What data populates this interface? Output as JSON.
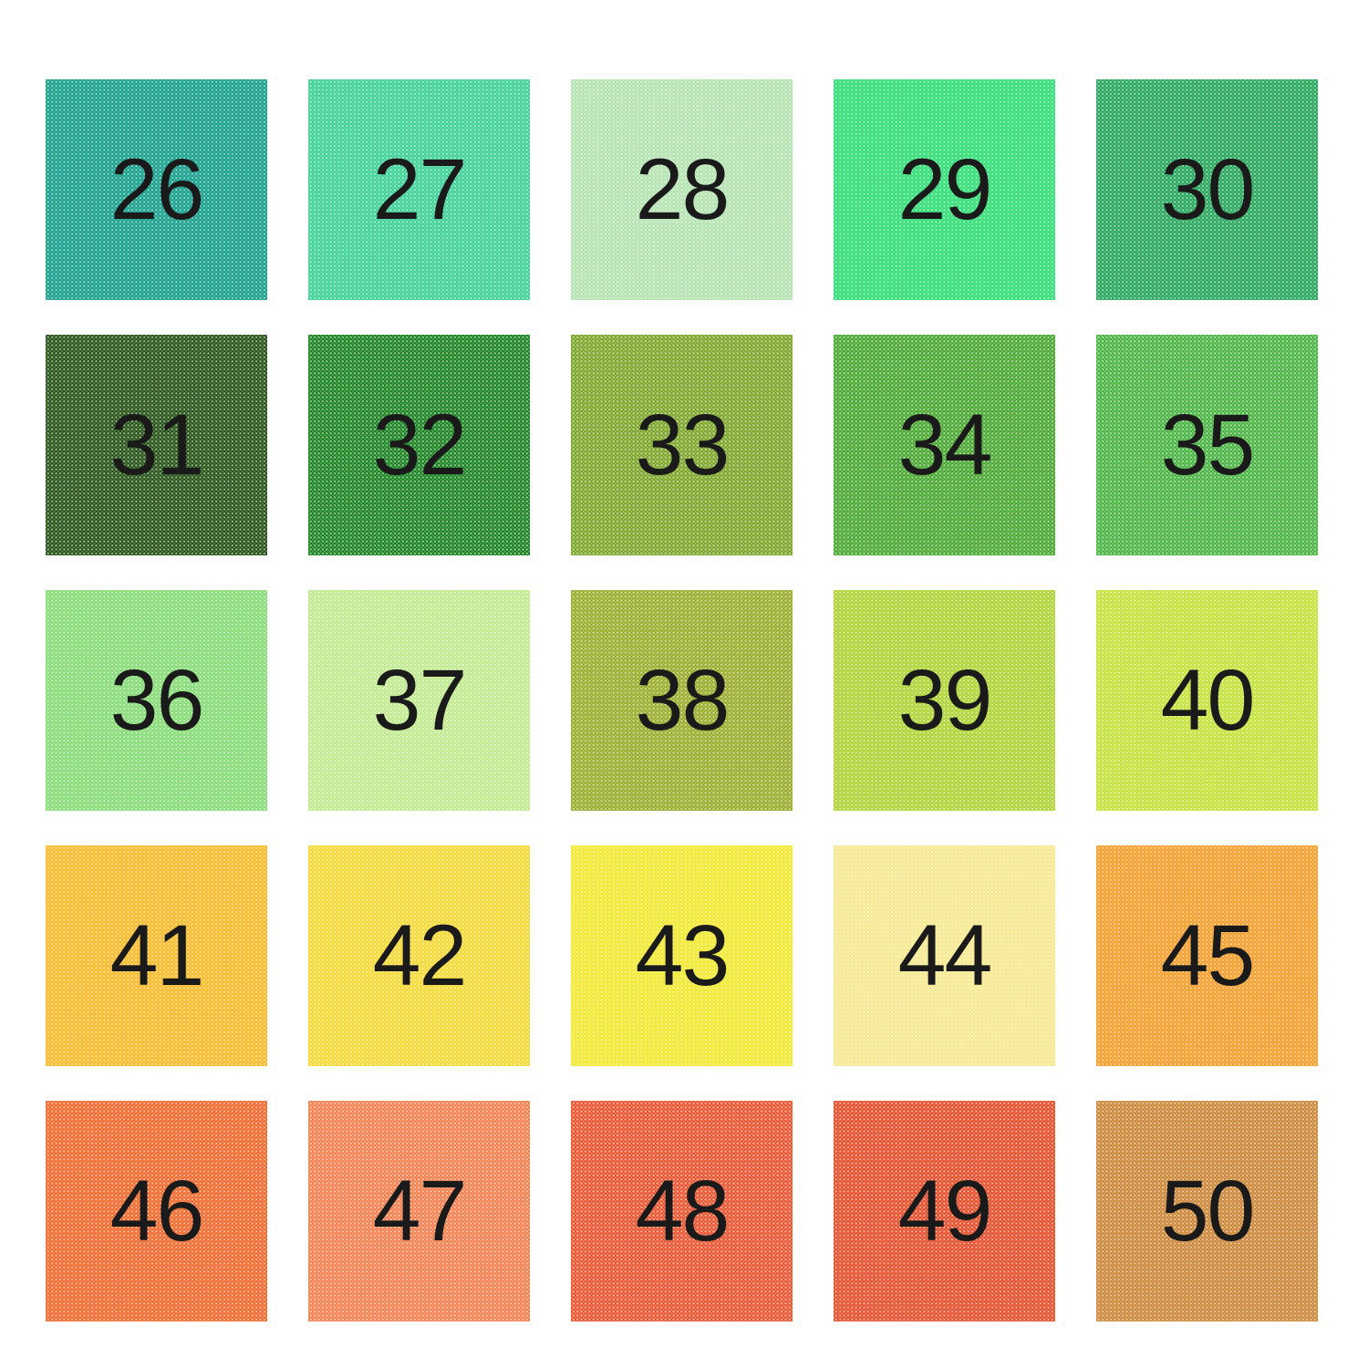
{
  "page": {
    "background_color": "#ffffff",
    "texture": {
      "style": "polka-dot",
      "dot_color": "#ffffff"
    },
    "label_color": "#1a1a1a"
  },
  "swatches": [
    {
      "label": "26",
      "color": "#109d88"
    },
    {
      "label": "27",
      "color": "#38cf93"
    },
    {
      "label": "28",
      "color": "#b2e2ae"
    },
    {
      "label": "29",
      "color": "#2adc71"
    },
    {
      "label": "30",
      "color": "#22a458"
    },
    {
      "label": "31",
      "color": "#204e10"
    },
    {
      "label": "32",
      "color": "#15801c"
    },
    {
      "label": "33",
      "color": "#79a324"
    },
    {
      "label": "34",
      "color": "#45a52c"
    },
    {
      "label": "35",
      "color": "#45b23e"
    },
    {
      "label": "36",
      "color": "#83da72"
    },
    {
      "label": "37",
      "color": "#bfe98b"
    },
    {
      "label": "38",
      "color": "#97ab26"
    },
    {
      "label": "39",
      "color": "#add230"
    },
    {
      "label": "40",
      "color": "#c2e134"
    },
    {
      "label": "41",
      "color": "#f7b822"
    },
    {
      "label": "42",
      "color": "#f4d82e"
    },
    {
      "label": "43",
      "color": "#f1e828"
    },
    {
      "label": "44",
      "color": "#f6e88a"
    },
    {
      "label": "45",
      "color": "#f39b24"
    },
    {
      "label": "46",
      "color": "#ef6527"
    },
    {
      "label": "47",
      "color": "#f27c4a"
    },
    {
      "label": "48",
      "color": "#e7502a"
    },
    {
      "label": "49",
      "color": "#e34a25"
    },
    {
      "label": "50",
      "color": "#cb8433"
    }
  ]
}
